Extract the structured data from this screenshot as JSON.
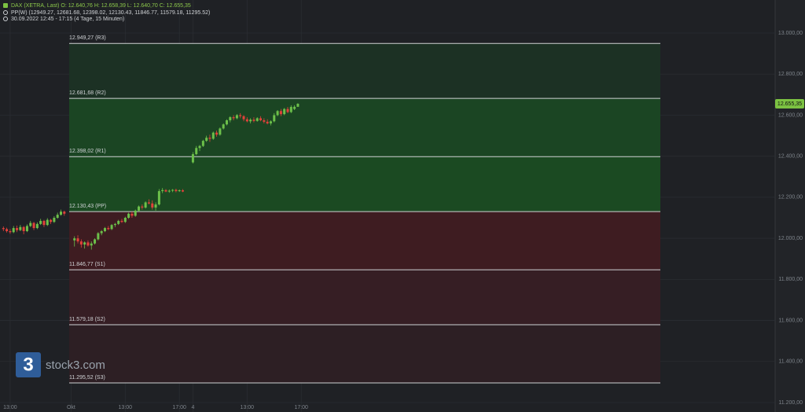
{
  "chart_data": {
    "type": "candlestick",
    "title": "DAX (XETRA, Last)  O: 12.640,76  H: 12.658,39  L: 12.640,70  C: 12.655,35",
    "indicator": "PP(W)  (12949.27, 12681.68, 12398.02, 12130.43, 11846.77, 11579.18, 11295.52)",
    "period": "30.09.2022 12:45 - 17:15   (4 Tage, 15 Minuten)",
    "watermark": {
      "logo": "3",
      "text": "stock3.com"
    },
    "up_color": "#6cc04a",
    "down_color": "#e2413b",
    "grid": true,
    "xlim": [
      -21,
      208
    ],
    "xticks": [
      {
        "value": -18,
        "label": "13:00"
      },
      {
        "value": 0,
        "label": "Okt"
      },
      {
        "value": 16,
        "label": "13:00"
      },
      {
        "value": 32,
        "label": "17:00"
      },
      {
        "value": 36,
        "label": "4"
      },
      {
        "value": 52,
        "label": "13:00"
      },
      {
        "value": 68,
        "label": "17:00"
      }
    ],
    "ylim": [
      11154,
      13161
    ],
    "yticks": [
      {
        "value": 11200,
        "label": "11.200,00"
      },
      {
        "value": 11400,
        "label": "11.400,00"
      },
      {
        "value": 11600,
        "label": "11.600,00"
      },
      {
        "value": 11800,
        "label": "11.800,00"
      },
      {
        "value": 12000,
        "label": "12.000,00"
      },
      {
        "value": 12200,
        "label": "12.200,00"
      },
      {
        "value": 12400,
        "label": "12.400,00"
      },
      {
        "value": 12600,
        "label": "12.600,00"
      },
      {
        "value": 12800,
        "label": "12.800,00"
      },
      {
        "value": 13000,
        "label": "13.000,00"
      }
    ],
    "pivots": [
      {
        "value": 12949.27,
        "label": "12.949,27 (R3)"
      },
      {
        "value": 12681.68,
        "label": "12.681,68 (R2)"
      },
      {
        "value": 12398.02,
        "label": "12.398,02 (R1)"
      },
      {
        "value": 12130.43,
        "label": "12.130,43 (PP)"
      },
      {
        "value": 11846.77,
        "label": "11.846,77 (S1)"
      },
      {
        "value": 11579.18,
        "label": "11.579,18 (S2)"
      },
      {
        "value": 11295.52,
        "label": "11.295,52 (S3)"
      }
    ],
    "zone_colors": [
      "#1c3124",
      "#1b4523",
      "#1b4a22",
      "#3e1c21",
      "#361e24",
      "#2d1f24"
    ],
    "last_price": {
      "value": 12655.35,
      "label": "12.655,35",
      "color": "#7cc242"
    },
    "candles": {
      "x": [
        -20,
        -19,
        -18,
        -17,
        -16,
        -15,
        -14,
        -13,
        -12,
        -11,
        -10,
        -9,
        -8,
        -7,
        -6,
        -5,
        -4,
        -3,
        -2,
        1,
        2,
        3,
        4,
        5,
        6,
        7,
        8,
        9,
        10,
        11,
        12,
        13,
        14,
        15,
        16,
        17,
        18,
        19,
        20,
        21,
        22,
        23,
        24,
        25,
        26,
        27,
        28,
        29,
        30,
        31,
        32,
        33,
        36,
        37,
        38,
        39,
        40,
        41,
        42,
        43,
        44,
        45,
        46,
        47,
        48,
        49,
        50,
        51,
        52,
        53,
        54,
        55,
        56,
        57,
        58,
        59,
        60,
        61,
        62,
        63,
        64,
        65,
        66,
        67
      ],
      "open": [
        12050,
        12045,
        12035,
        12030,
        12050,
        12040,
        12055,
        12035,
        12060,
        12075,
        12050,
        12070,
        12085,
        12065,
        12090,
        12080,
        12100,
        12115,
        12130,
        11990,
        12000,
        11985,
        11970,
        11980,
        11965,
        11975,
        11995,
        12025,
        12035,
        12050,
        12045,
        12065,
        12070,
        12085,
        12080,
        12100,
        12120,
        12110,
        12135,
        12155,
        12150,
        12175,
        12170,
        12150,
        12165,
        12230,
        12235,
        12228,
        12232,
        12236,
        12230,
        12234,
        12370,
        12410,
        12440,
        12450,
        12475,
        12490,
        12485,
        12515,
        12505,
        12535,
        12555,
        12575,
        12590,
        12585,
        12600,
        12595,
        12580,
        12570,
        12578,
        12572,
        12585,
        12575,
        12568,
        12560,
        12570,
        12600,
        12620,
        12605,
        12630,
        12615,
        12630,
        12640.76
      ],
      "high": [
        12058,
        12052,
        12045,
        12060,
        12062,
        12065,
        12060,
        12068,
        12085,
        12080,
        12078,
        12095,
        12090,
        12098,
        12095,
        12108,
        12125,
        12140,
        12135,
        12010,
        12015,
        11995,
        11985,
        11990,
        11985,
        12000,
        12030,
        12040,
        12055,
        12060,
        12070,
        12075,
        12090,
        12095,
        12105,
        12125,
        12130,
        12140,
        12160,
        12165,
        12180,
        12190,
        12185,
        12175,
        12240,
        12245,
        12240,
        12238,
        12240,
        12242,
        12238,
        12240,
        12420,
        12450,
        12455,
        12480,
        12500,
        12505,
        12520,
        12525,
        12540,
        12560,
        12580,
        12595,
        12600,
        12605,
        12610,
        12600,
        12590,
        12585,
        12590,
        12590,
        12595,
        12585,
        12580,
        12575,
        12610,
        12625,
        12630,
        12635,
        12640,
        12648,
        12648,
        12658.39
      ],
      "low": [
        12035,
        12028,
        12022,
        12025,
        12030,
        12035,
        12020,
        12030,
        12055,
        12040,
        12045,
        12065,
        12055,
        12060,
        12070,
        12075,
        12095,
        12110,
        12110,
        11960,
        11975,
        11955,
        11950,
        11960,
        11945,
        11970,
        11990,
        12015,
        12030,
        12040,
        12040,
        12055,
        12065,
        12075,
        12075,
        12095,
        12100,
        12105,
        12130,
        12140,
        12145,
        12165,
        12140,
        12135,
        12160,
        12220,
        12225,
        12222,
        12225,
        12224,
        12226,
        12225,
        12365,
        12405,
        12425,
        12445,
        12470,
        12470,
        12480,
        12495,
        12500,
        12530,
        12550,
        12565,
        12575,
        12580,
        12585,
        12570,
        12565,
        12560,
        12565,
        12568,
        12570,
        12560,
        12555,
        12550,
        12565,
        12595,
        12595,
        12600,
        12610,
        12610,
        12625,
        12640.7
      ],
      "close": [
        12045,
        12035,
        12030,
        12050,
        12040,
        12055,
        12035,
        12060,
        12075,
        12050,
        12070,
        12085,
        12065,
        12090,
        12080,
        12100,
        12115,
        12130,
        12120,
        12000,
        11985,
        11970,
        11980,
        11965,
        11975,
        11995,
        12025,
        12035,
        12050,
        12045,
        12065,
        12070,
        12085,
        12080,
        12100,
        12120,
        12110,
        12135,
        12155,
        12150,
        12175,
        12170,
        12150,
        12165,
        12230,
        12235,
        12228,
        12232,
        12236,
        12230,
        12234,
        12228,
        12410,
        12440,
        12450,
        12475,
        12490,
        12485,
        12515,
        12505,
        12535,
        12555,
        12575,
        12590,
        12585,
        12600,
        12595,
        12580,
        12570,
        12578,
        12572,
        12585,
        12575,
        12568,
        12560,
        12570,
        12600,
        12620,
        12605,
        12630,
        12615,
        12640,
        12640.76,
        12655.35
      ]
    }
  }
}
